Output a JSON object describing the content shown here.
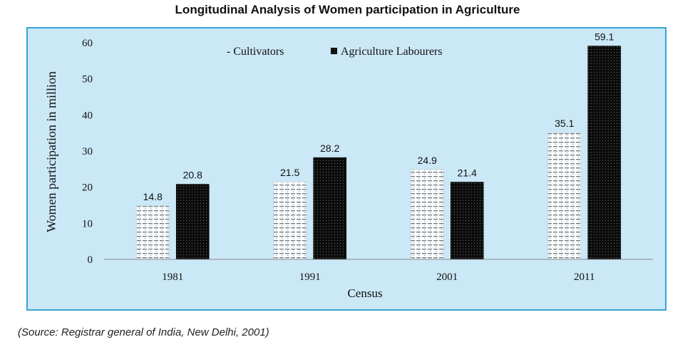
{
  "chart_data": {
    "type": "bar",
    "title": "Longitudinal Analysis of Women participation in Agriculture",
    "xlabel": "Census",
    "ylabel": "Women participation in million",
    "categories": [
      "1981",
      "1991",
      "2001",
      "2011"
    ],
    "series": [
      {
        "name": "Cultivators",
        "values": [
          14.8,
          21.5,
          24.9,
          35.1
        ],
        "color": "#ffffff",
        "pattern": "dashed-dots"
      },
      {
        "name": "Agriculture Labourers",
        "values": [
          20.8,
          28.2,
          21.4,
          59.1
        ],
        "color": "#111111",
        "pattern": "dotted-dark"
      }
    ],
    "ylim": [
      0,
      60
    ],
    "yticks": [
      0,
      10,
      20,
      30,
      40,
      50,
      60
    ],
    "legend_position": "top",
    "grid": false,
    "background": "#cbe8f7",
    "border_color": "#3aa3d6"
  },
  "legend": {
    "cultivators_label": "- Cultivators",
    "labourers_label": "Agriculture Labourers"
  },
  "source": "(Source: Registrar general of India, New Delhi, 2001)"
}
